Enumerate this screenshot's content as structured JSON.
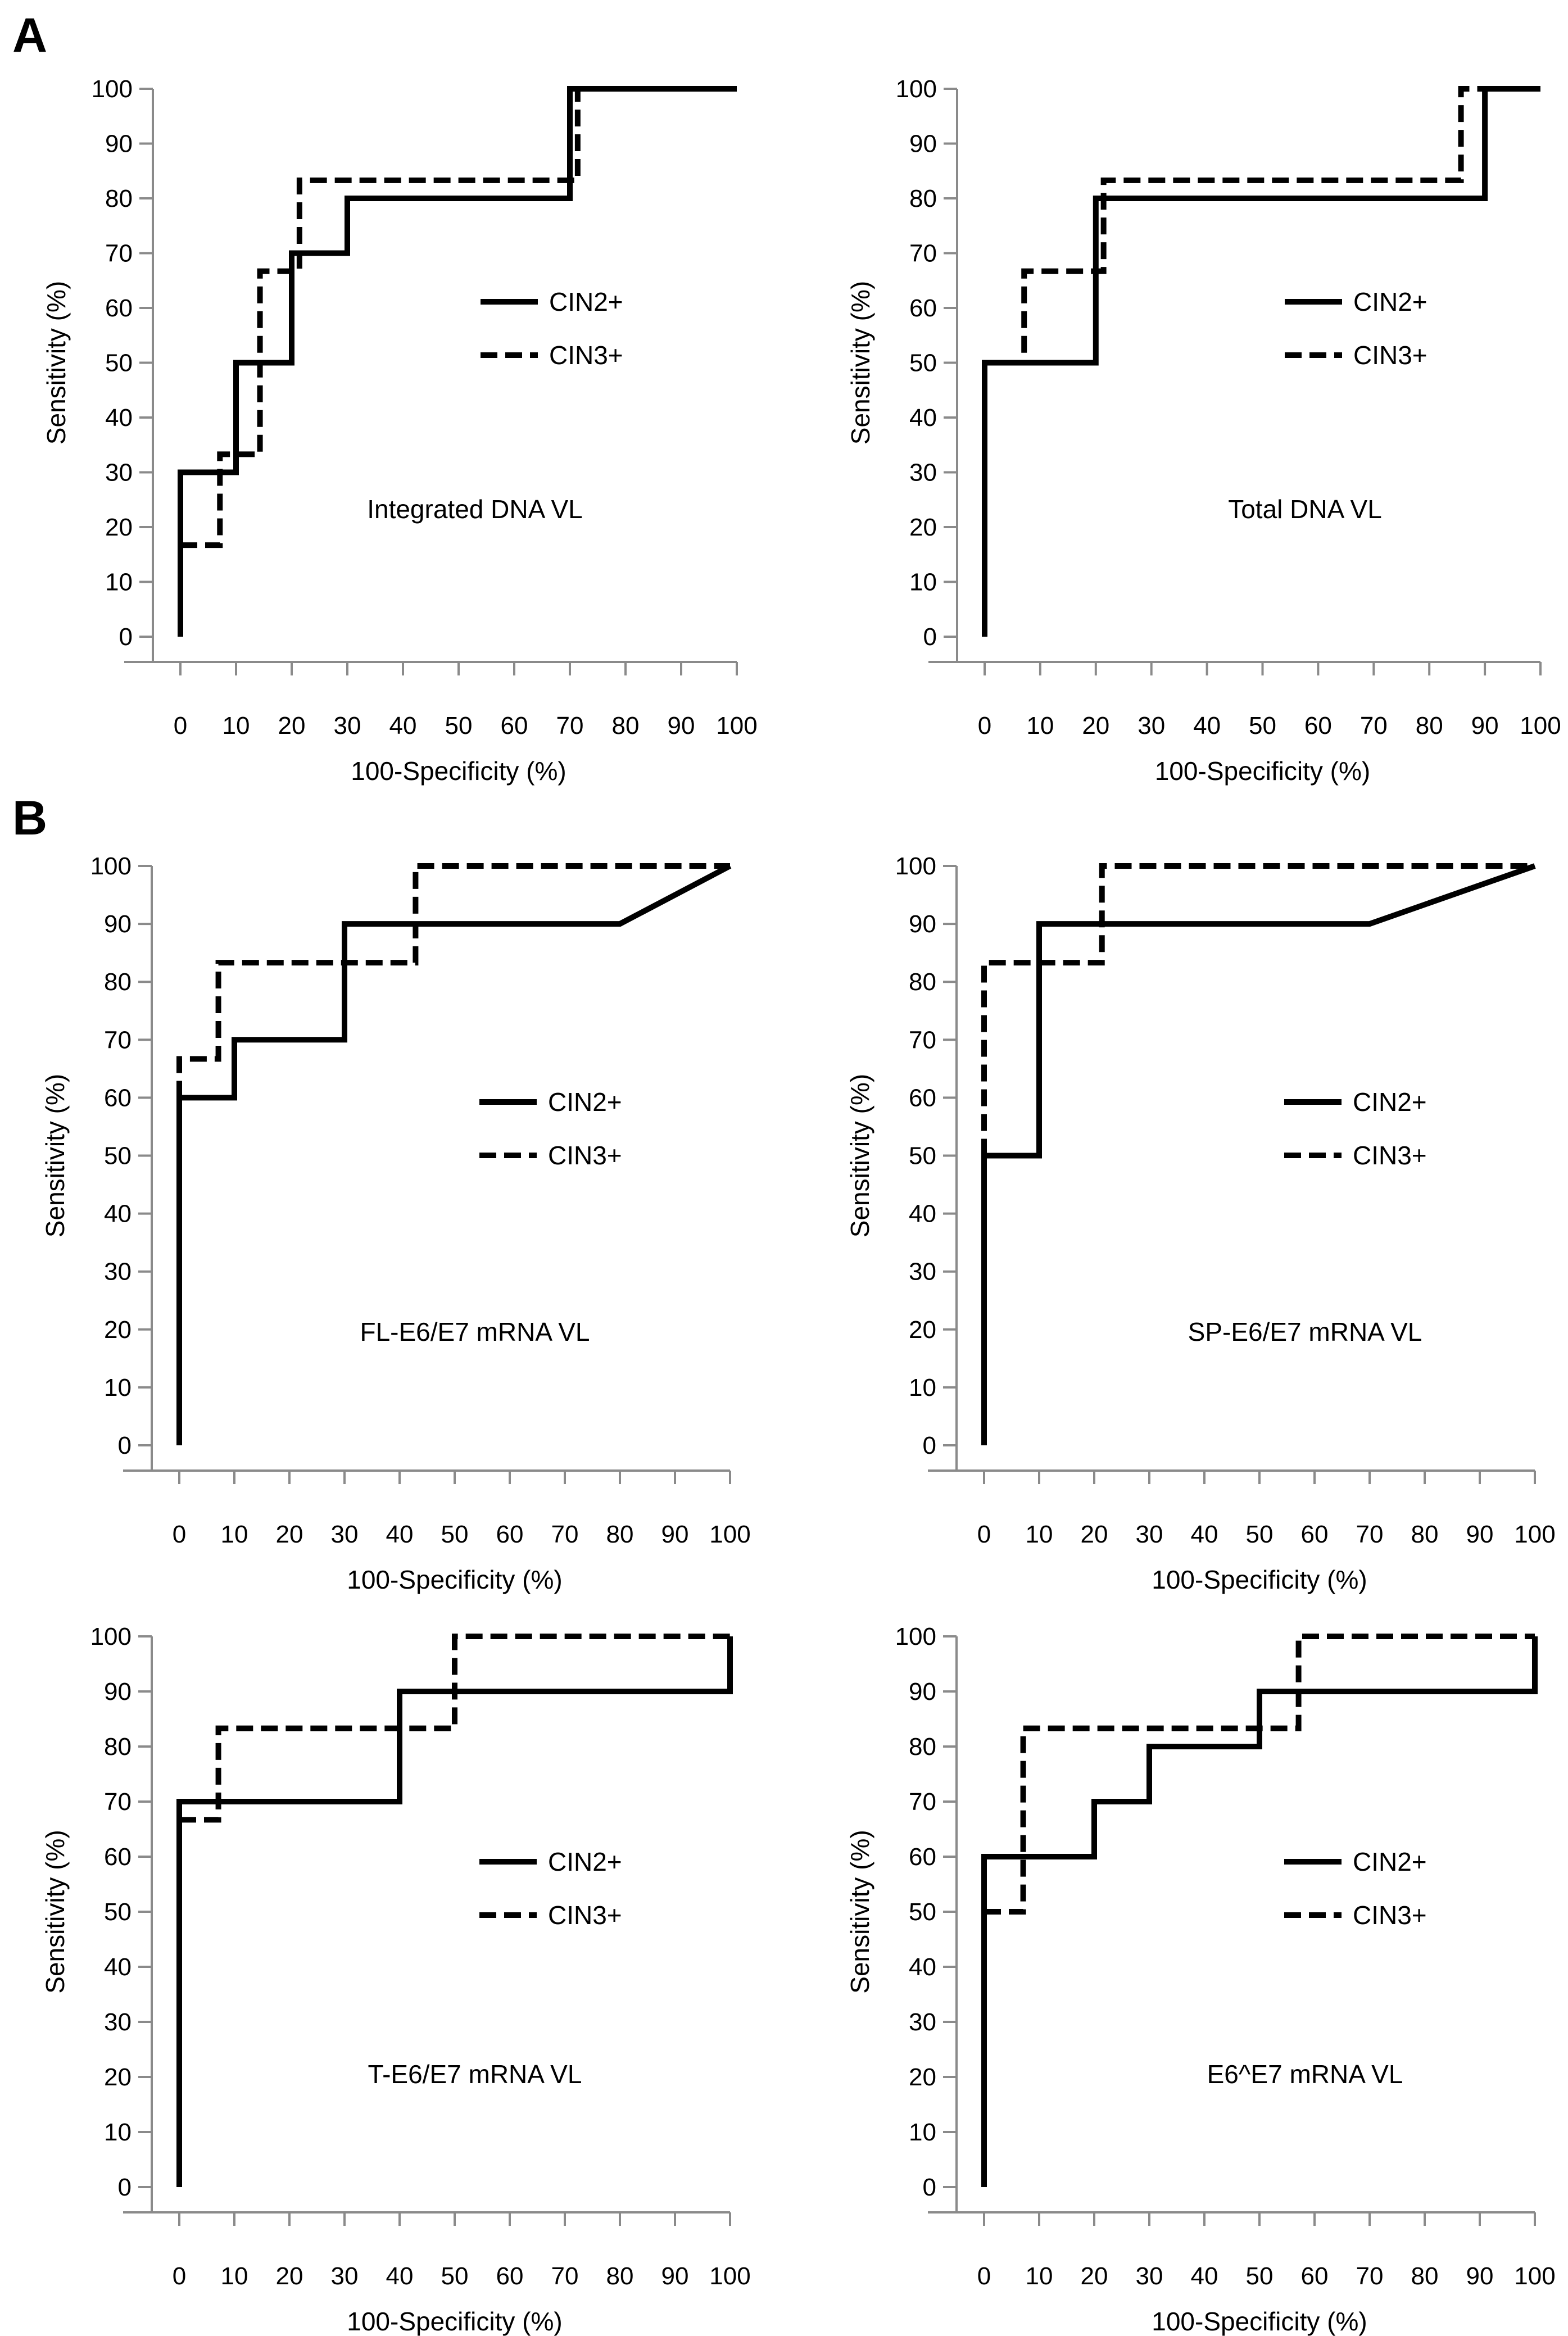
{
  "panel_labels": [
    "A",
    "B"
  ],
  "chart_data": [
    {
      "type": "line",
      "panel": "A",
      "title": "Integrated DNA VL",
      "xlabel": "100-Specificity (%)",
      "ylabel": "Sensitivity (%)",
      "xlim": [
        0,
        100
      ],
      "ylim": [
        0,
        100
      ],
      "xticks": [
        "0",
        "10",
        "20",
        "30",
        "40",
        "50",
        "60",
        "70",
        "80",
        "90",
        "100"
      ],
      "yticks": [
        "0",
        "10",
        "20",
        "30",
        "40",
        "50",
        "60",
        "70",
        "80",
        "90",
        "100"
      ],
      "legend": "center-right",
      "series": [
        {
          "name": "CIN2+",
          "style": "solid",
          "x": [
            0,
            0,
            10,
            10,
            20,
            20,
            30,
            30,
            70,
            70,
            100
          ],
          "y": [
            0,
            30,
            30,
            50,
            50,
            70,
            70,
            80,
            80,
            100,
            100
          ]
        },
        {
          "name": "CIN3+",
          "style": "dashed",
          "x": [
            0,
            7.1,
            7.1,
            14.3,
            14.3,
            21.4,
            21.4,
            71.4,
            71.4
          ],
          "y": [
            16.7,
            16.7,
            33.3,
            33.3,
            66.7,
            66.7,
            83.3,
            83.3,
            100
          ]
        }
      ]
    },
    {
      "type": "line",
      "panel": "A",
      "title": "Total DNA VL",
      "xlabel": "100-Specificity (%)",
      "ylabel": "Sensitivity (%)",
      "xlim": [
        0,
        100
      ],
      "ylim": [
        0,
        100
      ],
      "xticks": [
        "0",
        "10",
        "20",
        "30",
        "40",
        "50",
        "60",
        "70",
        "80",
        "90",
        "100"
      ],
      "yticks": [
        "0",
        "10",
        "20",
        "30",
        "40",
        "50",
        "60",
        "70",
        "80",
        "90",
        "100"
      ],
      "legend": "center-right",
      "series": [
        {
          "name": "CIN2+",
          "style": "solid",
          "x": [
            0,
            0,
            20,
            20,
            90,
            90,
            100
          ],
          "y": [
            0,
            50,
            50,
            80,
            80,
            100,
            100
          ]
        },
        {
          "name": "CIN3+",
          "style": "dashed",
          "x": [
            0,
            7.1,
            7.1,
            21.4,
            21.4,
            85.7,
            85.7,
            90
          ],
          "y": [
            50,
            50,
            66.7,
            66.7,
            83.3,
            83.3,
            100,
            100
          ]
        }
      ]
    },
    {
      "type": "line",
      "panel": "B",
      "title": "FL-E6/E7 mRNA VL",
      "xlabel": "100-Specificity (%)",
      "ylabel": "Sensitivity (%)",
      "xlim": [
        0,
        100
      ],
      "ylim": [
        0,
        100
      ],
      "xticks": [
        "0",
        "10",
        "20",
        "30",
        "40",
        "50",
        "60",
        "70",
        "80",
        "90",
        "100"
      ],
      "yticks": [
        "0",
        "10",
        "20",
        "30",
        "40",
        "50",
        "60",
        "70",
        "80",
        "90",
        "100"
      ],
      "legend": "center-right",
      "series": [
        {
          "name": "CIN2+",
          "style": "solid",
          "x": [
            0,
            0,
            10,
            10,
            30,
            30,
            80,
            100
          ],
          "y": [
            0,
            60,
            60,
            70,
            70,
            90,
            90,
            100
          ]
        },
        {
          "name": "CIN3+",
          "style": "dashed",
          "x": [
            0,
            0,
            7.1,
            7.1,
            42.9,
            42.9,
            100
          ],
          "y": [
            60,
            66.7,
            66.7,
            83.3,
            83.3,
            100,
            100
          ]
        }
      ]
    },
    {
      "type": "line",
      "panel": "B",
      "title": "SP-E6/E7 mRNA VL",
      "xlabel": "100-Specificity (%)",
      "ylabel": "Sensitivity (%)",
      "xlim": [
        0,
        100
      ],
      "ylim": [
        0,
        100
      ],
      "xticks": [
        "0",
        "10",
        "20",
        "30",
        "40",
        "50",
        "60",
        "70",
        "80",
        "90",
        "100"
      ],
      "yticks": [
        "0",
        "10",
        "20",
        "30",
        "40",
        "50",
        "60",
        "70",
        "80",
        "90",
        "100"
      ],
      "legend": "center-right",
      "series": [
        {
          "name": "CIN2+",
          "style": "solid",
          "x": [
            0,
            0,
            10,
            10,
            70,
            100
          ],
          "y": [
            0,
            50,
            50,
            90,
            90,
            100
          ]
        },
        {
          "name": "CIN3+",
          "style": "dashed",
          "x": [
            0,
            0,
            21.4,
            21.4,
            100
          ],
          "y": [
            50,
            83.3,
            83.3,
            100,
            100
          ]
        }
      ]
    },
    {
      "type": "line",
      "panel": "B",
      "title": "T-E6/E7 mRNA VL",
      "xlabel": "100-Specificity (%)",
      "ylabel": "Sensitivity (%)",
      "xlim": [
        0,
        100
      ],
      "ylim": [
        0,
        100
      ],
      "xticks": [
        "0",
        "10",
        "20",
        "30",
        "40",
        "50",
        "60",
        "70",
        "80",
        "90",
        "100"
      ],
      "yticks": [
        "0",
        "10",
        "20",
        "30",
        "40",
        "50",
        "60",
        "70",
        "80",
        "90",
        "100"
      ],
      "legend": "center-right",
      "series": [
        {
          "name": "CIN2+",
          "style": "solid",
          "x": [
            0,
            0,
            40,
            40,
            100,
            100
          ],
          "y": [
            0,
            70,
            70,
            90,
            90,
            100
          ]
        },
        {
          "name": "CIN3+",
          "style": "dashed",
          "x": [
            0,
            7.1,
            7.1,
            50,
            50,
            100
          ],
          "y": [
            66.7,
            66.7,
            83.3,
            83.3,
            100,
            100
          ]
        }
      ]
    },
    {
      "type": "line",
      "panel": "B",
      "title": "E6^E7 mRNA VL",
      "xlabel": "100-Specificity (%)",
      "ylabel": "Sensitivity (%)",
      "xlim": [
        0,
        100
      ],
      "ylim": [
        0,
        100
      ],
      "xticks": [
        "0",
        "10",
        "20",
        "30",
        "40",
        "50",
        "60",
        "70",
        "80",
        "90",
        "100"
      ],
      "yticks": [
        "0",
        "10",
        "20",
        "30",
        "40",
        "50",
        "60",
        "70",
        "80",
        "90",
        "100"
      ],
      "legend": "center-right",
      "series": [
        {
          "name": "CIN2+",
          "style": "solid",
          "x": [
            0,
            0,
            20,
            20,
            30,
            30,
            50,
            50,
            100,
            100
          ],
          "y": [
            0,
            60,
            60,
            70,
            70,
            80,
            80,
            90,
            90,
            100
          ]
        },
        {
          "name": "CIN3+",
          "style": "dashed",
          "x": [
            0,
            7.1,
            7.1,
            57.1,
            57.1,
            100
          ],
          "y": [
            50,
            50,
            83.3,
            83.3,
            100,
            100
          ]
        }
      ]
    }
  ]
}
